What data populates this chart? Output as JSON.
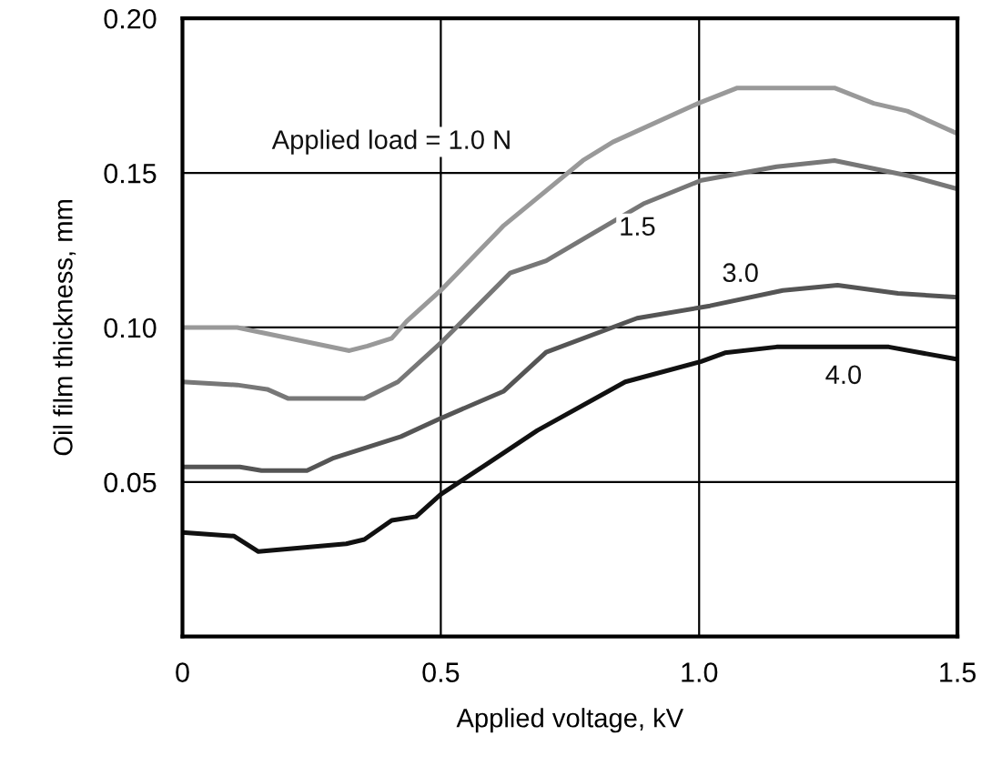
{
  "chart_data": {
    "type": "line",
    "xlabel": "Applied voltage, kV",
    "ylabel": "Oil film thickness, mm",
    "xlim": [
      0,
      1.5
    ],
    "ylim": [
      0,
      0.2
    ],
    "xticks": [
      0,
      0.5,
      {
        "value": 1.0,
        "label": "1.0"
      },
      1.5
    ],
    "yticks": [
      0.05,
      {
        "value": 0.1,
        "label": "0.10"
      },
      0.15,
      {
        "value": 0.2,
        "label": "0.20"
      }
    ],
    "grid": true,
    "marker": "none",
    "line_style": "solid",
    "series": [
      {
        "name": "Applied load = 1.0 N",
        "color": "#999999",
        "x": [
          0,
          0.106,
          0.323,
          0.358,
          0.405,
          0.434,
          0.5,
          0.622,
          0.775,
          0.833,
          0.998,
          1.074,
          1.262,
          1.338,
          1.403,
          1.496
        ],
        "values": [
          0.1,
          0.1,
          0.0925,
          0.094,
          0.0965,
          0.102,
          0.112,
          0.133,
          0.154,
          0.16,
          0.1725,
          0.1775,
          0.1775,
          0.1725,
          0.17,
          0.163
        ]
      },
      {
        "name": "1.5",
        "color": "#777777",
        "x": [
          0,
          0.106,
          0.164,
          0.205,
          0.352,
          0.417,
          0.5,
          0.634,
          0.704,
          0.892,
          1.004,
          1.15,
          1.262,
          1.408,
          1.496
        ],
        "values": [
          0.0824,
          0.0814,
          0.08,
          0.077,
          0.077,
          0.0824,
          0.095,
          0.1176,
          0.1216,
          0.14,
          0.1476,
          0.152,
          0.154,
          0.149,
          0.145
        ]
      },
      {
        "name": "3.0",
        "color": "#555555",
        "x": [
          0,
          0.111,
          0.153,
          0.241,
          0.293,
          0.423,
          0.5,
          0.622,
          0.704,
          0.88,
          1.021,
          1.162,
          1.268,
          1.385,
          1.496
        ],
        "values": [
          0.0549,
          0.0549,
          0.0537,
          0.0537,
          0.0578,
          0.0647,
          0.0706,
          0.0794,
          0.092,
          0.103,
          0.107,
          0.112,
          0.1137,
          0.111,
          0.1098
        ]
      },
      {
        "name": "4.0",
        "color": "#111111",
        "x": [
          0,
          0.1,
          0.147,
          0.317,
          0.352,
          0.405,
          0.452,
          0.5,
          0.599,
          0.687,
          0.857,
          1.004,
          1.05,
          1.15,
          1.367,
          1.496
        ],
        "values": [
          0.0337,
          0.0325,
          0.0275,
          0.03,
          0.0314,
          0.0376,
          0.0388,
          0.046,
          0.0569,
          0.0667,
          0.0824,
          0.089,
          0.0918,
          0.0937,
          0.0937,
          0.0898
        ]
      }
    ]
  }
}
